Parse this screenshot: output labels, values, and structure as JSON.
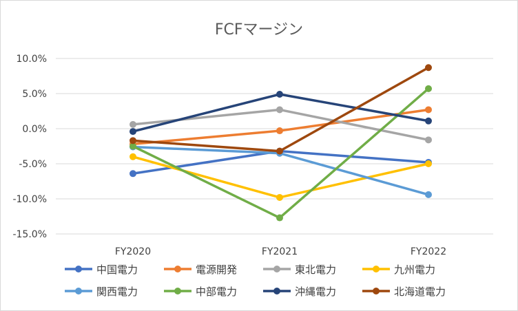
{
  "chart_data": {
    "type": "line",
    "title": "FCFマージン",
    "xlabel": "",
    "ylabel": "",
    "categories": [
      "FY2020",
      "FY2021",
      "FY2022"
    ],
    "ylim": [
      -15,
      10
    ],
    "y_ticks": [
      10,
      5,
      0,
      -5,
      -10,
      -15
    ],
    "y_tick_labels": [
      "10.0%",
      "5.0%",
      "0.0%",
      "-5.0%",
      "-10.0%",
      "-15.0%"
    ],
    "grid": "horizontal",
    "legend_position": "bottom",
    "series": [
      {
        "name": "中国電力",
        "color": "#4472c4",
        "values": [
          -6.4,
          -3.2,
          -4.8
        ]
      },
      {
        "name": "電源開発",
        "color": "#ed7d31",
        "values": [
          -2.2,
          -0.3,
          2.7
        ]
      },
      {
        "name": "東北電力",
        "color": "#a5a5a5",
        "values": [
          0.6,
          2.7,
          -1.6
        ]
      },
      {
        "name": "九州電力",
        "color": "#ffc000",
        "values": [
          -4.0,
          -9.8,
          -5.0
        ]
      },
      {
        "name": "関西電力",
        "color": "#5b9bd5",
        "values": [
          -2.6,
          -3.5,
          -9.4
        ]
      },
      {
        "name": "中部電力",
        "color": "#70ad47",
        "values": [
          -2.5,
          -12.7,
          5.7
        ]
      },
      {
        "name": "沖縄電力",
        "color": "#264478",
        "values": [
          -0.4,
          4.9,
          1.1
        ]
      },
      {
        "name": "北海道電力",
        "color": "#9e480e",
        "values": [
          -1.7,
          -3.2,
          8.7
        ]
      }
    ]
  }
}
